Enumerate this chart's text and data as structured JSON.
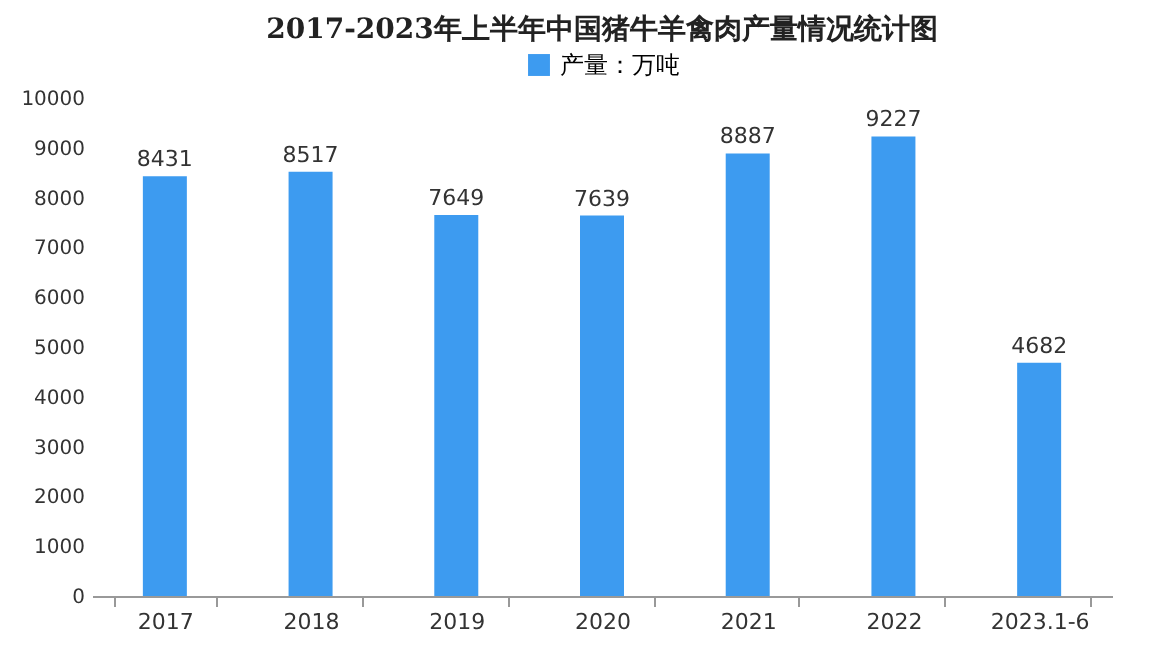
{
  "chart_data": {
    "type": "bar",
    "title": "2017-2023年上半年中国猪牛羊禽肉产量情况统计图",
    "categories": [
      "2017",
      "2018",
      "2019",
      "2020",
      "2021",
      "2022",
      "2023.1-6"
    ],
    "series": [
      {
        "name": "产量：万吨",
        "color": "#3d9bf0",
        "values": [
          8431,
          8517,
          7649,
          7639,
          8887,
          9227,
          4682
        ]
      }
    ],
    "ylim": [
      0,
      10000
    ],
    "yticks": [
      0,
      1000,
      2000,
      3000,
      4000,
      5000,
      6000,
      7000,
      8000,
      9000,
      10000
    ],
    "grid": false,
    "legend": "top",
    "data_labels": true
  }
}
